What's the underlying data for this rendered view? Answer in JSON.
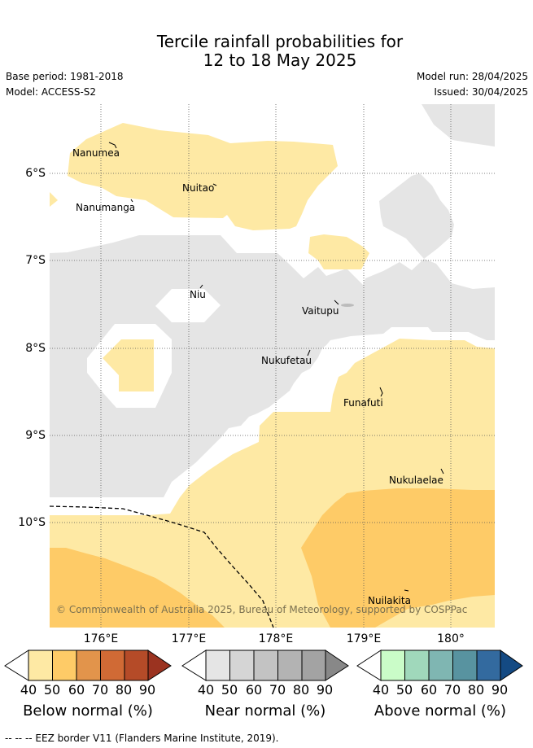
{
  "title_line1": "Tercile rainfall probabilities for",
  "title_line2": "12 to 18 May 2025",
  "base_period": "Base period: 1981-2018",
  "model": "Model: ACCESS-S2",
  "model_run": "Model run: 28/04/2025",
  "issued": "Issued: 30/04/2025",
  "map": {
    "lat_labels": [
      "6°S",
      "7°S",
      "8°S",
      "9°S",
      "10°S"
    ],
    "lon_labels": [
      "176°E",
      "177°E",
      "178°E",
      "179°E",
      "180°"
    ],
    "places": {
      "nanumea": "Nanumea",
      "nuitao": "Nuitao",
      "nanumanga": "Nanumanga",
      "niu": "Niu",
      "vaitupu": "Vaitupu",
      "nukufetau": "Nukufetau",
      "funafuti": "Funafuti",
      "nukulaelae": "Nukulaelae",
      "nuilakita": "Nuilakita"
    },
    "attribution": "© Commonwealth of Australia 2025, Bureau of Meteorology, supported by COSPPac",
    "colors": {
      "below_40_50": "#fee9a4",
      "below_50_60": "#fecb67",
      "near_normal": "#e5e5e5",
      "no_signal": "#ffffff"
    }
  },
  "colorbars": [
    {
      "title": "Below normal (%)",
      "ticks": [
        "40",
        "50",
        "60",
        "70",
        "80",
        "90"
      ],
      "colors": [
        "#fee9a4",
        "#fecb67",
        "#e2944b",
        "#d06a35",
        "#b54b28",
        "#9b3320"
      ]
    },
    {
      "title": "Near normal (%)",
      "ticks": [
        "40",
        "50",
        "60",
        "70",
        "80",
        "90"
      ],
      "colors": [
        "#e5e5e5",
        "#d5d5d5",
        "#c3c3c3",
        "#b3b3b3",
        "#a3a3a3",
        "#888888"
      ]
    },
    {
      "title": "Above normal (%)",
      "ticks": [
        "40",
        "50",
        "60",
        "70",
        "80",
        "90"
      ],
      "colors": [
        "#cafcc8",
        "#a0d8bb",
        "#7fb6b2",
        "#5893a0",
        "#336a9f",
        "#144a83"
      ]
    }
  ],
  "eez_note": "--  --  -- EEZ border V11 (Flanders Marine Institute, 2019)."
}
